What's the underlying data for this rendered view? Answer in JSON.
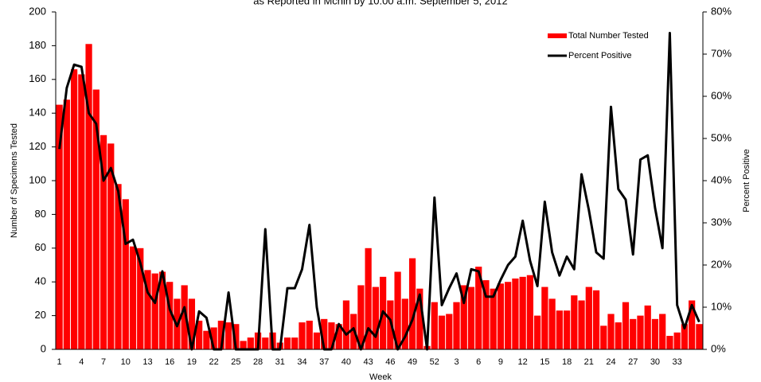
{
  "chart_data": {
    "type": "bar",
    "title": "as Reported in Mchin by 10:00 a.m. September 5, 2012",
    "x_label": "Week",
    "y_label": "Number of Specimens Tested",
    "y2_label": "Percent Positive",
    "categories": [
      "1",
      null,
      null,
      "4",
      null,
      null,
      "7",
      null,
      null,
      "10",
      null,
      null,
      "13",
      null,
      null,
      "16",
      null,
      null,
      "19",
      null,
      null,
      "22",
      null,
      null,
      "25",
      null,
      null,
      "28",
      null,
      null,
      "31",
      null,
      null,
      "34",
      null,
      null,
      "37",
      null,
      null,
      "40",
      null,
      null,
      "43",
      null,
      null,
      "46",
      null,
      null,
      "49",
      null,
      null,
      "52",
      null,
      null,
      "3",
      null,
      null,
      "6",
      null,
      null,
      "9",
      null,
      null,
      "12",
      null,
      null,
      "15",
      null,
      null,
      "18",
      null,
      null,
      "21",
      null,
      null,
      "24",
      null,
      null,
      "27",
      null,
      null,
      "30",
      null,
      null,
      "33",
      null,
      null,
      null
    ],
    "series": [
      {
        "name": "Total Number Tested",
        "type": "bar",
        "color": "#ff0000",
        "axis": "y",
        "values": [
          145,
          148,
          166,
          163,
          181,
          154,
          127,
          122,
          98,
          89,
          61,
          60,
          47,
          45,
          46,
          40,
          30,
          38,
          30,
          17,
          11,
          13,
          17,
          16,
          15,
          5,
          7,
          10,
          7,
          10,
          4,
          7,
          7,
          16,
          17,
          10,
          18,
          16,
          15,
          29,
          21,
          38,
          60,
          37,
          43,
          29,
          46,
          30,
          54,
          36,
          2,
          28,
          20,
          21,
          28,
          38,
          37,
          49,
          41,
          36,
          39,
          40,
          42,
          43,
          44,
          20,
          37,
          30,
          23,
          23,
          32,
          29,
          37,
          35,
          14,
          21,
          16,
          28,
          18,
          20,
          26,
          18,
          21,
          8,
          10,
          15,
          29,
          15
        ]
      },
      {
        "name": "Percent Positive",
        "type": "line",
        "color": "#000000",
        "axis": "y2",
        "values": [
          47.5,
          62,
          67.5,
          67,
          56,
          53.5,
          40,
          43,
          37.5,
          25,
          26,
          20.5,
          13.5,
          11,
          18.5,
          9.5,
          5.5,
          10,
          0,
          9,
          7.5,
          0,
          0,
          13.5,
          0,
          0,
          0,
          0,
          28.5,
          0,
          0,
          14.5,
          14.5,
          19,
          29.5,
          10,
          0,
          0,
          6,
          3.5,
          5,
          0,
          5,
          3,
          9,
          7,
          0,
          3,
          7,
          13,
          0,
          36,
          10.5,
          14.5,
          18,
          11,
          19,
          18.5,
          12.5,
          12.5,
          16.5,
          20,
          22,
          30.5,
          21,
          15,
          35,
          23,
          17.5,
          22,
          19,
          41.5,
          33,
          23,
          21.5,
          57.5,
          38,
          35.5,
          22.5,
          45,
          46,
          33.5,
          24,
          75,
          10.5,
          5,
          10.5,
          6.5
        ]
      }
    ],
    "ylim": [
      0,
      200
    ],
    "yticks": [
      0,
      20,
      40,
      60,
      80,
      100,
      120,
      140,
      160,
      180,
      200
    ],
    "y2lim": [
      0,
      80
    ],
    "y2ticks": [
      {
        "value": 0,
        "label": "0%"
      },
      {
        "value": 10,
        "label": "10%"
      },
      {
        "value": 20,
        "label": "20%"
      },
      {
        "value": 30,
        "label": "30%"
      },
      {
        "value": 40,
        "label": "40%"
      },
      {
        "value": 50,
        "label": "50%"
      },
      {
        "value": 60,
        "label": "60%"
      },
      {
        "value": 70,
        "label": "70%"
      },
      {
        "value": 80,
        "label": "80%"
      }
    ],
    "legend": "top-right"
  }
}
